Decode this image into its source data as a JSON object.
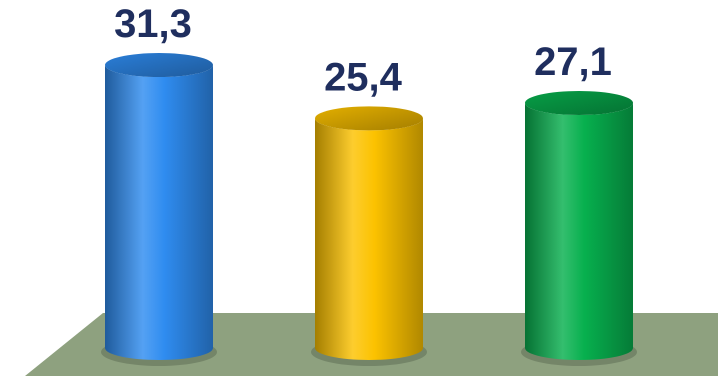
{
  "chart_data": {
    "type": "bar",
    "style": "3d-cylinder",
    "categories": [
      "",
      "",
      ""
    ],
    "values": [
      31.3,
      25.4,
      27.1
    ],
    "data_labels": [
      "31,3",
      "25,4",
      "27,1"
    ],
    "bar_colors": [
      "#2f8cf0",
      "#fcc200",
      "#07b04e"
    ],
    "floor_color": "#8ea17f",
    "label_color": "#1f2e5e",
    "title": "",
    "xlabel": "",
    "ylabel": "",
    "ylim": [
      0,
      35
    ],
    "grid": false,
    "legend": "none"
  }
}
